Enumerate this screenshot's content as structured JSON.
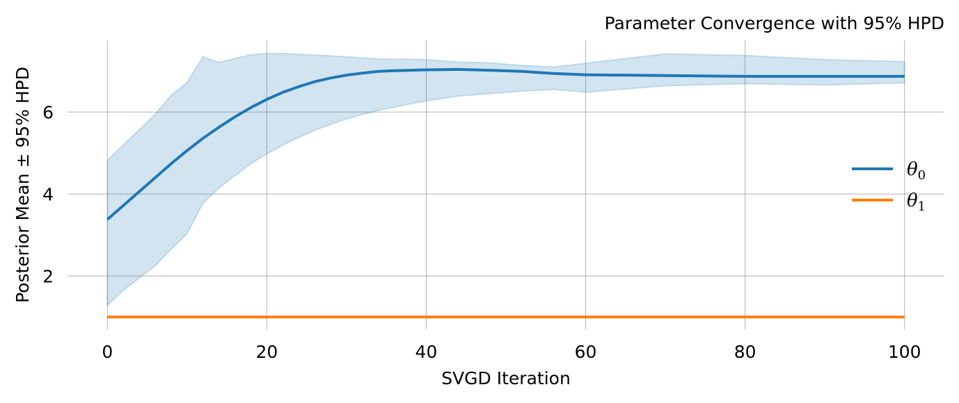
{
  "chart_data": {
    "type": "line",
    "title": "Parameter Convergence with 95% HPD",
    "xlabel": "SVGD Iteration",
    "ylabel": "Posterior Mean ± 95% HPD",
    "xlim": [
      -5,
      105
    ],
    "ylim": [
      0.7,
      7.75
    ],
    "xticks": [
      0,
      20,
      40,
      60,
      80,
      100
    ],
    "yticks": [
      2,
      4,
      6
    ],
    "grid": true,
    "legend_position": "center-right",
    "series": [
      {
        "name": "θ",
        "subscript": "0",
        "color": "#1f77b4",
        "x": [
          0,
          2,
          4,
          6,
          8,
          10,
          12,
          14,
          16,
          18,
          20,
          22,
          24,
          26,
          28,
          30,
          32,
          34,
          36,
          38,
          40,
          44,
          48,
          52,
          56,
          60,
          70,
          80,
          90,
          100
        ],
        "mean": [
          3.38,
          3.72,
          4.06,
          4.4,
          4.74,
          5.06,
          5.36,
          5.63,
          5.88,
          6.11,
          6.31,
          6.48,
          6.62,
          6.74,
          6.83,
          6.9,
          6.95,
          6.99,
          7.01,
          7.02,
          7.03,
          7.04,
          7.02,
          6.99,
          6.94,
          6.91,
          6.89,
          6.87,
          6.87,
          6.87
        ],
        "hpd_upper": [
          4.82,
          5.2,
          5.57,
          5.95,
          6.41,
          6.72,
          7.35,
          7.21,
          7.31,
          7.4,
          7.43,
          7.43,
          7.41,
          7.39,
          7.37,
          7.35,
          7.32,
          7.3,
          7.29,
          7.29,
          7.28,
          7.22,
          7.2,
          7.14,
          7.1,
          7.19,
          7.42,
          7.38,
          7.28,
          7.23
        ],
        "hpd_lower": [
          1.28,
          1.65,
          1.95,
          2.25,
          2.65,
          3.03,
          3.78,
          4.14,
          4.45,
          4.74,
          4.98,
          5.19,
          5.38,
          5.55,
          5.7,
          5.83,
          5.94,
          6.04,
          6.12,
          6.2,
          6.27,
          6.39,
          6.45,
          6.51,
          6.55,
          6.48,
          6.64,
          6.69,
          6.66,
          6.71
        ]
      },
      {
        "name": "θ",
        "subscript": "1",
        "color": "#ff7f0e",
        "x": [
          0,
          100
        ],
        "mean": [
          1.0,
          1.0
        ],
        "hpd_upper": [
          1.0,
          1.0
        ],
        "hpd_lower": [
          1.0,
          1.0
        ]
      }
    ]
  }
}
